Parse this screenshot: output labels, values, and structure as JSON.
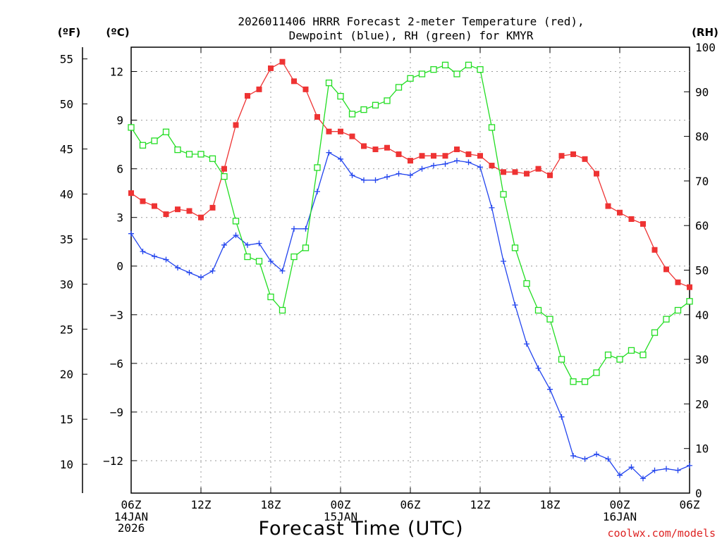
{
  "chart_data": {
    "type": "line",
    "title_line1": "2026011406 HRRR Forecast 2-meter Temperature (red),",
    "title_line2": "Dewpoint (blue), RH (green) for KMYR",
    "xlabel": "Forecast Time (UTC)",
    "credit": "coolwx.com/models",
    "unit_f": "(ºF)",
    "unit_c": "(ºC)",
    "unit_rh": "(RH)",
    "x_range_hours": [
      0,
      48
    ],
    "celsius_axis": {
      "min": -14,
      "max": 13.5,
      "ticks": [
        12,
        9,
        6,
        3,
        0,
        -3,
        -6,
        -9,
        -12
      ],
      "labels": [
        "12",
        "9",
        "6",
        "3",
        "0",
        "−3",
        "−6",
        "−9",
        "−12"
      ]
    },
    "fahrenheit_axis": {
      "ticks": [
        55,
        50,
        45,
        40,
        35,
        30,
        25,
        20,
        15,
        10
      ],
      "labels": [
        "55",
        "50",
        "45",
        "40",
        "35",
        "30",
        "25",
        "20",
        "15",
        "10"
      ]
    },
    "rh_axis": {
      "min": 0,
      "max": 100,
      "ticks": [
        100,
        90,
        80,
        70,
        60,
        50,
        40,
        30,
        20,
        10,
        0
      ],
      "labels": [
        "100",
        "90",
        "80",
        "70",
        "60",
        "50",
        "40",
        "30",
        "20",
        "10",
        "0"
      ]
    },
    "x_ticks": [
      {
        "hour": 0,
        "label": "06Z",
        "date": "14JAN",
        "year": "2026"
      },
      {
        "hour": 6,
        "label": "12Z",
        "date": "",
        "year": ""
      },
      {
        "hour": 12,
        "label": "18Z",
        "date": "",
        "year": ""
      },
      {
        "hour": 18,
        "label": "00Z",
        "date": "15JAN",
        "year": ""
      },
      {
        "hour": 24,
        "label": "06Z",
        "date": "",
        "year": ""
      },
      {
        "hour": 30,
        "label": "12Z",
        "date": "",
        "year": ""
      },
      {
        "hour": 36,
        "label": "18Z",
        "date": "",
        "year": ""
      },
      {
        "hour": 42,
        "label": "00Z",
        "date": "16JAN",
        "year": ""
      },
      {
        "hour": 48,
        "label": "06Z",
        "date": "",
        "year": ""
      }
    ],
    "series": [
      {
        "name": "Temperature",
        "unit": "C",
        "color": "#ee3333",
        "marker": "filled-square",
        "values": [
          4.5,
          4.0,
          3.7,
          3.2,
          3.5,
          3.4,
          3.0,
          3.6,
          6.0,
          8.7,
          10.5,
          10.9,
          12.2,
          12.6,
          11.4,
          10.9,
          9.2,
          8.3,
          8.3,
          8.0,
          7.4,
          7.2,
          7.3,
          6.9,
          6.5,
          6.8,
          6.8,
          6.8,
          7.2,
          6.9,
          6.8,
          6.2,
          5.8,
          5.8,
          5.7,
          6.0,
          5.6,
          6.8,
          6.9,
          6.6,
          5.7,
          3.7,
          3.3,
          2.9,
          2.6,
          1.0,
          -0.2,
          -1.0,
          -1.3
        ]
      },
      {
        "name": "Dewpoint",
        "unit": "C",
        "color": "#2244ee",
        "marker": "plus",
        "values": [
          2.0,
          0.9,
          0.6,
          0.4,
          -0.1,
          -0.4,
          -0.7,
          -0.3,
          1.3,
          1.9,
          1.3,
          1.4,
          0.3,
          -0.3,
          2.3,
          2.3,
          4.6,
          7.0,
          6.6,
          5.6,
          5.3,
          5.3,
          5.5,
          5.7,
          5.6,
          6.0,
          6.2,
          6.3,
          6.5,
          6.4,
          6.1,
          3.6,
          0.3,
          -2.4,
          -4.8,
          -6.3,
          -7.6,
          -9.3,
          -11.7,
          -11.9,
          -11.6,
          -11.9,
          -12.9,
          -12.4,
          -13.1,
          -12.6,
          -12.5,
          -12.6,
          -12.3
        ]
      },
      {
        "name": "RH",
        "unit": "%",
        "color": "#22dd22",
        "marker": "open-square",
        "values": [
          82,
          78,
          79,
          81,
          77,
          76,
          76,
          75,
          71,
          61,
          53,
          52,
          44,
          41,
          53,
          55,
          73,
          92,
          89,
          85,
          86,
          87,
          88,
          91,
          93,
          94,
          95,
          96,
          94,
          96,
          95,
          82,
          67,
          55,
          47,
          41,
          39,
          30,
          25,
          25,
          27,
          31,
          30,
          32,
          31,
          36,
          39,
          41,
          43
        ]
      }
    ]
  }
}
